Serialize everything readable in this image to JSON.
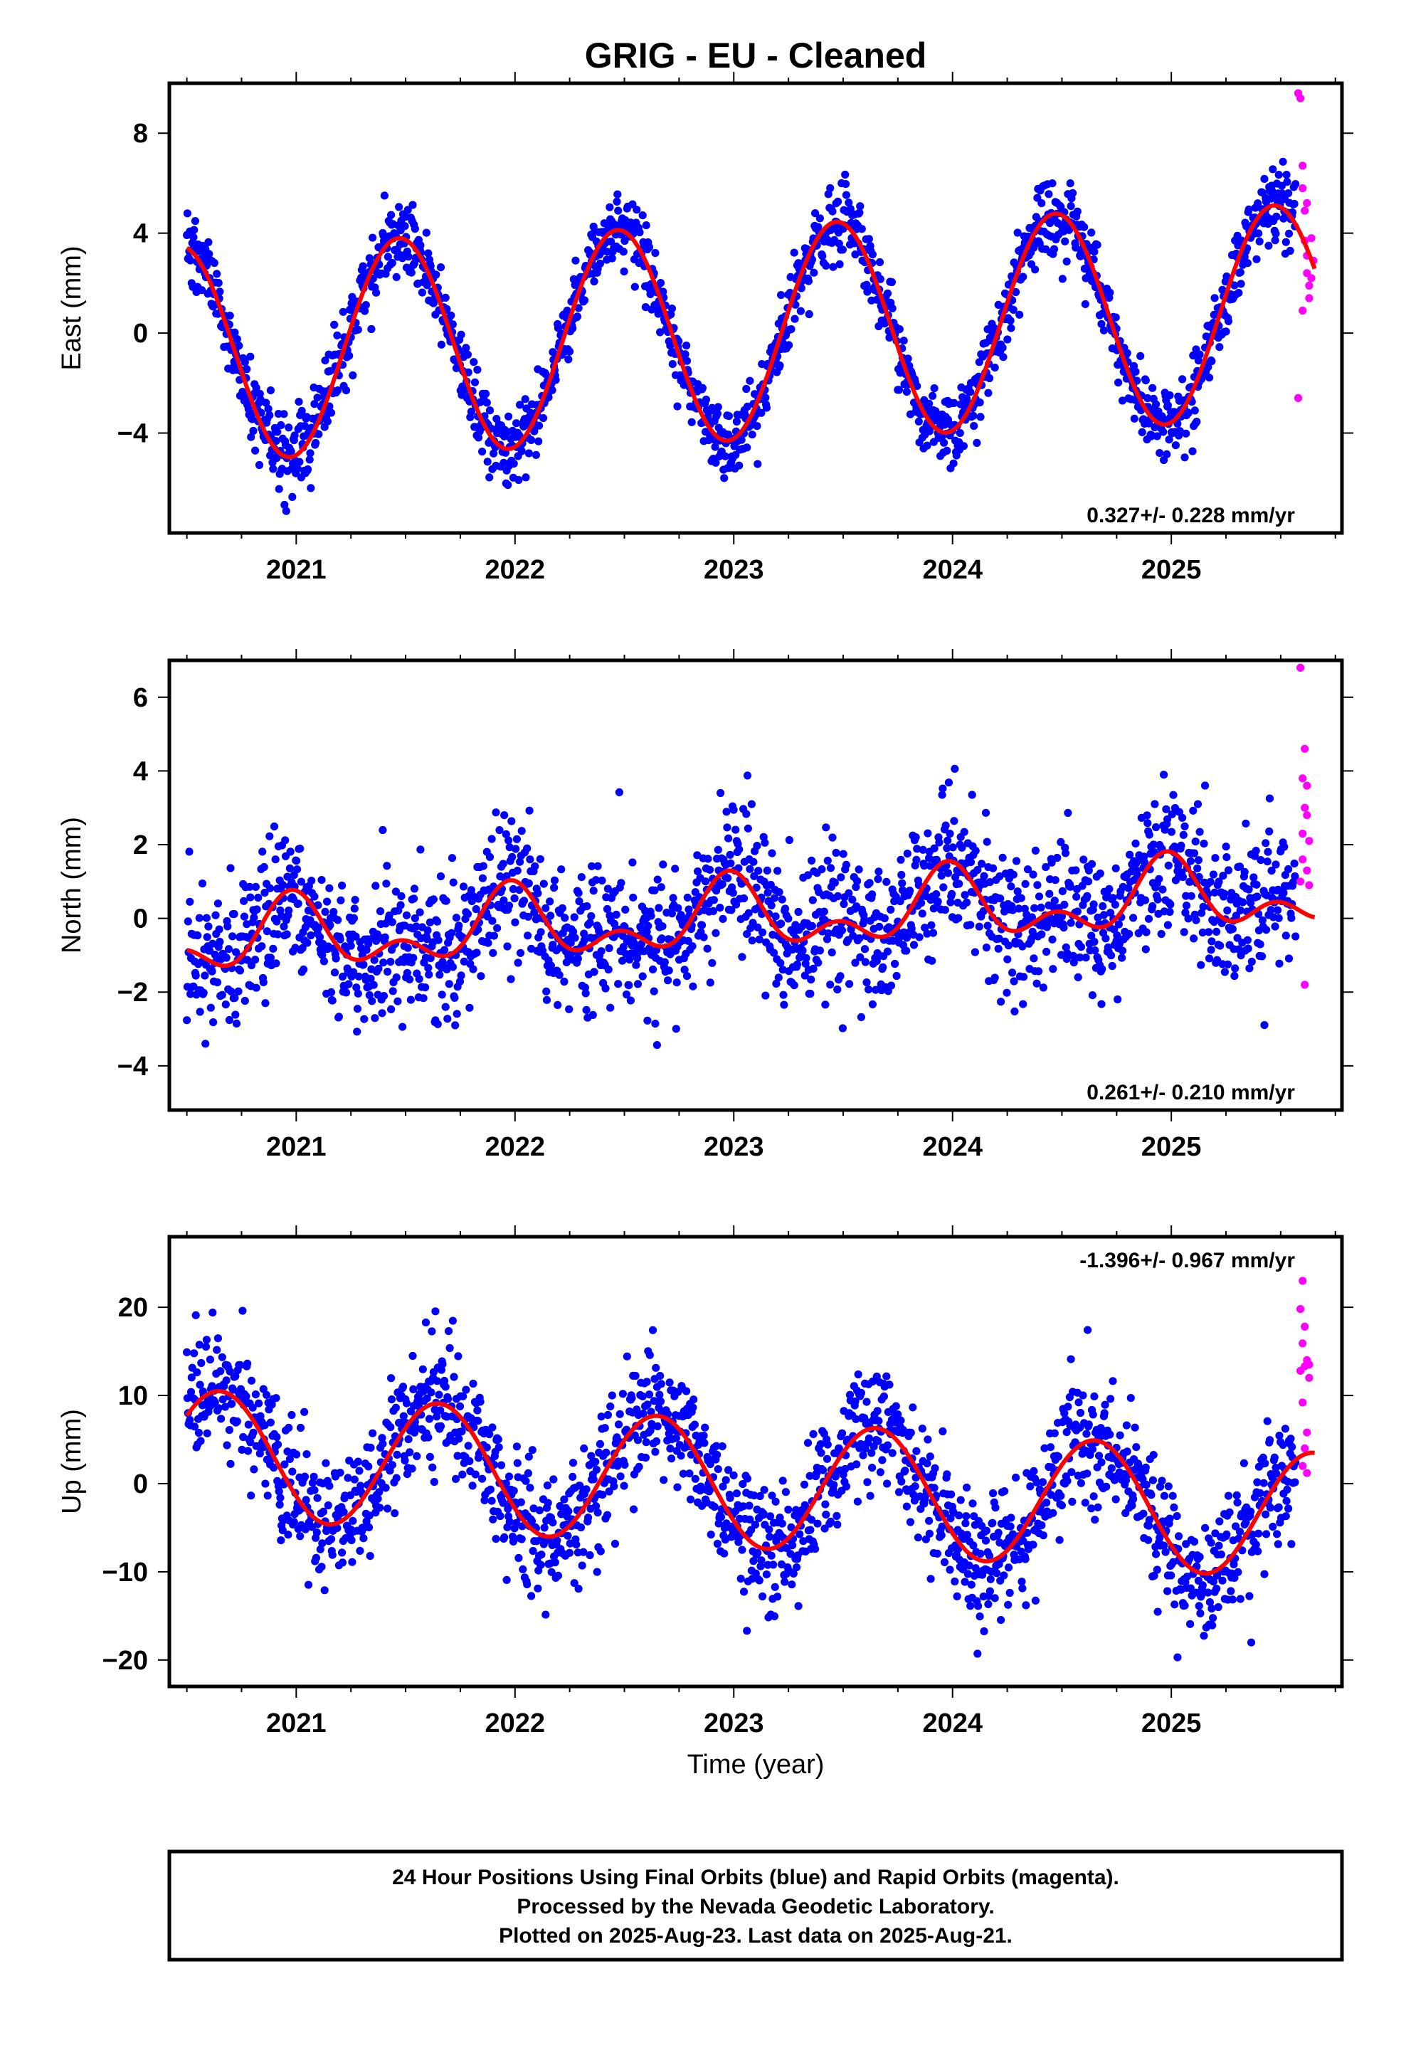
{
  "figure": {
    "title": "GRIG  - EU - Cleaned",
    "xlabel": "Time (year)",
    "footer": [
      "24 Hour Positions Using Final Orbits (blue) and Rapid Orbits (magenta).",
      "Processed by the Nevada Geodetic Laboratory.",
      "Plotted on 2025-Aug-23. Last data on 2025-Aug-21."
    ],
    "colors": {
      "final": "#0000ff",
      "rapid": "#ff00ff",
      "fit": "#ff0000"
    }
  },
  "chart_data": [
    {
      "type": "scatter",
      "component": "east",
      "ylabel": "East (mm)",
      "xlim": [
        2020.42,
        2025.78
      ],
      "ylim": [
        -8.0,
        10.0
      ],
      "xticks": [
        2021,
        2022,
        2023,
        2024,
        2025
      ],
      "yticks": [
        -4,
        0,
        4,
        8
      ],
      "rate_text": "0.327+/- 0.228 mm/yr",
      "rate_position": "bottom-right",
      "model": {
        "offset": 0.0,
        "trend": 0.327,
        "annual_amp": 4.3,
        "annual_peak": 0.47,
        "semi_amp": 0.0,
        "semi_peak": 0.0,
        "center_year": 2023.0
      },
      "final_range": [
        2020.5,
        2025.57
      ],
      "final_scatter_sd": 0.75,
      "series": [
        {
          "name": "Final Orbits (blue)",
          "color": "#0000ff"
        },
        {
          "name": "Rapid Orbits (magenta)",
          "color": "#ff00ff",
          "points": [
            [
              2025.58,
              9.6
            ],
            [
              2025.59,
              9.4
            ],
            [
              2025.6,
              6.7
            ],
            [
              2025.6,
              5.8
            ],
            [
              2025.61,
              4.9
            ],
            [
              2025.61,
              3.7
            ],
            [
              2025.62,
              3.1
            ],
            [
              2025.62,
              2.4
            ],
            [
              2025.63,
              1.9
            ],
            [
              2025.63,
              1.4
            ],
            [
              2025.64,
              3.8
            ],
            [
              2025.64,
              2.2
            ],
            [
              2025.65,
              2.9
            ],
            [
              2025.6,
              0.9
            ],
            [
              2025.58,
              -2.6
            ],
            [
              2025.62,
              5.2
            ]
          ]
        }
      ]
    },
    {
      "type": "scatter",
      "component": "north",
      "ylabel": "North (mm)",
      "xlim": [
        2020.42,
        2025.78
      ],
      "ylim": [
        -5.2,
        7.0
      ],
      "xticks": [
        2021,
        2022,
        2023,
        2024,
        2025
      ],
      "yticks": [
        -4,
        -2,
        0,
        2,
        4,
        6
      ],
      "rate_text": "0.261+/- 0.210 mm/yr",
      "rate_position": "bottom-right",
      "model": {
        "offset": 0.0,
        "trend": 0.261,
        "annual_amp": 0.75,
        "annual_peak": 0.98,
        "semi_amp": 0.55,
        "semi_peak": 0.98,
        "center_year": 2023.0
      },
      "final_range": [
        2020.5,
        2025.57
      ],
      "final_scatter_sd": 0.95,
      "series": [
        {
          "name": "Final Orbits (blue)",
          "color": "#0000ff"
        },
        {
          "name": "Rapid Orbits (magenta)",
          "color": "#ff00ff",
          "points": [
            [
              2025.59,
              6.8
            ],
            [
              2025.61,
              4.6
            ],
            [
              2025.6,
              3.8
            ],
            [
              2025.62,
              3.6
            ],
            [
              2025.61,
              3.0
            ],
            [
              2025.6,
              2.3
            ],
            [
              2025.63,
              2.1
            ],
            [
              2025.6,
              1.6
            ],
            [
              2025.62,
              1.3
            ],
            [
              2025.59,
              1.0
            ],
            [
              2025.63,
              0.9
            ],
            [
              2025.61,
              -1.8
            ],
            [
              2025.62,
              2.8
            ]
          ]
        }
      ]
    },
    {
      "type": "scatter",
      "component": "up",
      "ylabel": "Up (mm)",
      "xlim": [
        2020.42,
        2025.78
      ],
      "ylim": [
        -23.0,
        28.0
      ],
      "xticks": [
        2021,
        2022,
        2023,
        2024,
        2025
      ],
      "yticks": [
        -20,
        -10,
        0,
        10,
        20
      ],
      "rate_text": "-1.396+/- 0.967 mm/yr",
      "rate_position": "top-right",
      "model": {
        "offset": 0.0,
        "trend": -1.396,
        "annual_amp": 7.2,
        "annual_peak": 0.65,
        "semi_amp": 0.0,
        "semi_peak": 0.0,
        "center_year": 2023.0
      },
      "final_range": [
        2020.5,
        2025.57
      ],
      "final_scatter_sd": 3.6,
      "series": [
        {
          "name": "Final Orbits (blue)",
          "color": "#0000ff"
        },
        {
          "name": "Rapid Orbits (magenta)",
          "color": "#ff00ff",
          "points": [
            [
              2025.6,
              23.0
            ],
            [
              2025.59,
              19.8
            ],
            [
              2025.61,
              17.8
            ],
            [
              2025.6,
              15.9
            ],
            [
              2025.62,
              14.0
            ],
            [
              2025.61,
              13.3
            ],
            [
              2025.59,
              12.8
            ],
            [
              2025.63,
              12.0
            ],
            [
              2025.6,
              9.2
            ],
            [
              2025.62,
              5.8
            ],
            [
              2025.61,
              4.0
            ],
            [
              2025.6,
              2.0
            ],
            [
              2025.62,
              1.2
            ],
            [
              2025.63,
              13.5
            ]
          ]
        }
      ]
    }
  ]
}
